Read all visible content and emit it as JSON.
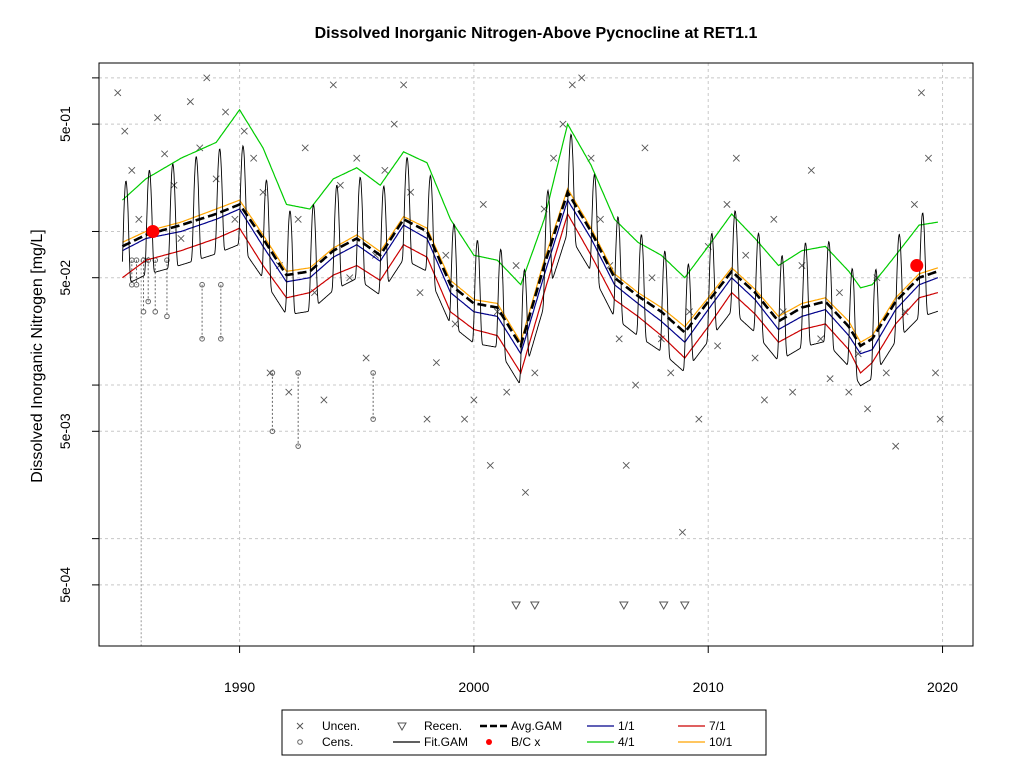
{
  "chart_data": {
    "type": "line",
    "title": "Dissolved Inorganic Nitrogen-Above Pycnocline at RET1.1",
    "xlabel": "",
    "ylabel": "Dissolved Inorganic Nitrogen [mg/L]",
    "y_scale": "log",
    "xlim": [
      1984.0,
      2021.3
    ],
    "ylim": [
      0.0002,
      1.25
    ],
    "x_ticks": [
      1990,
      2000,
      2010,
      2020
    ],
    "x_tick_labels": [
      "1990",
      "2000",
      "2010",
      "2020"
    ],
    "y_ticks": [
      0.0005,
      0.005,
      0.05,
      0.5
    ],
    "y_tick_labels": [
      "5e-04",
      "5e-03",
      "5e-02",
      "5e-01"
    ],
    "y_gridlines": [
      0.001,
      0.01,
      0.1,
      1.0
    ],
    "grid": true,
    "legend_position": "bottom-center",
    "legend": [
      {
        "label": "Uncen.",
        "kind": "cross"
      },
      {
        "label": "Cens.",
        "kind": "circle"
      },
      {
        "label": "Recen.",
        "kind": "triangle"
      },
      {
        "label": "Fit.GAM",
        "kind": "line",
        "color": "#000000"
      },
      {
        "label": "Avg.GAM",
        "kind": "dashed",
        "color": "#000000"
      },
      {
        "label": "B/C x",
        "kind": "dot",
        "color": "#ff0000"
      },
      {
        "label": "1/1",
        "kind": "line",
        "color": "#00008b"
      },
      {
        "label": "4/1",
        "kind": "line",
        "color": "#00cc00"
      },
      {
        "label": "7/1",
        "kind": "line",
        "color": "#cc0000"
      },
      {
        "label": "10/1",
        "kind": "line",
        "color": "#ffa500"
      }
    ],
    "avg_gam": {
      "x": [
        1985.0,
        1986.0,
        1987.5,
        1989.0,
        1990.0,
        1991.0,
        1992.0,
        1993.0,
        1994.0,
        1995.0,
        1996.0,
        1997.0,
        1998.0,
        1999.0,
        2000.0,
        2001.0,
        2002.0,
        2003.0,
        2004.0,
        2005.0,
        2006.0,
        2007.0,
        2008.0,
        2009.0,
        2010.0,
        2011.0,
        2012.0,
        2013.0,
        2014.0,
        2015.0,
        2016.0,
        2016.5,
        2017.0,
        2018.0,
        2019.0,
        2019.8
      ],
      "y": [
        0.08,
        0.095,
        0.11,
        0.13,
        0.15,
        0.09,
        0.052,
        0.055,
        0.075,
        0.09,
        0.07,
        0.12,
        0.1,
        0.045,
        0.034,
        0.032,
        0.018,
        0.06,
        0.18,
        0.1,
        0.05,
        0.038,
        0.03,
        0.022,
        0.035,
        0.055,
        0.04,
        0.026,
        0.032,
        0.035,
        0.024,
        0.018,
        0.02,
        0.035,
        0.05,
        0.055
      ]
    },
    "series": [
      {
        "name": "4/1",
        "color": "#00cc00",
        "x": [
          1985.0,
          1986.0,
          1987.5,
          1989.0,
          1990.0,
          1991.0,
          1992.0,
          1993.0,
          1994.0,
          1995.0,
          1996.0,
          1997.0,
          1998.0,
          1999.0,
          2000.0,
          2001.0,
          2002.0,
          2003.0,
          2004.0,
          2005.0,
          2006.0,
          2007.0,
          2008.0,
          2009.0,
          2010.0,
          2011.0,
          2012.0,
          2013.0,
          2014.0,
          2015.0,
          2016.0,
          2016.5,
          2017.0,
          2018.0,
          2019.0,
          2019.8
        ],
        "y": [
          0.16,
          0.22,
          0.3,
          0.38,
          0.62,
          0.35,
          0.15,
          0.14,
          0.22,
          0.26,
          0.2,
          0.33,
          0.28,
          0.12,
          0.07,
          0.065,
          0.045,
          0.12,
          0.5,
          0.27,
          0.12,
          0.085,
          0.07,
          0.05,
          0.08,
          0.13,
          0.09,
          0.06,
          0.075,
          0.08,
          0.055,
          0.043,
          0.045,
          0.07,
          0.11,
          0.115
        ]
      },
      {
        "name": "10/1",
        "color": "#ffa500",
        "x": [
          1985.0,
          1986.0,
          1987.5,
          1989.0,
          1990.0,
          1991.0,
          1992.0,
          1993.0,
          1994.0,
          1995.0,
          1996.0,
          1997.0,
          1998.0,
          1999.0,
          2000.0,
          2001.0,
          2002.0,
          2003.0,
          2004.0,
          2005.0,
          2006.0,
          2007.0,
          2008.0,
          2009.0,
          2010.0,
          2011.0,
          2012.0,
          2013.0,
          2014.0,
          2015.0,
          2016.0,
          2016.5,
          2017.0,
          2018.0,
          2019.0,
          2019.8
        ],
        "y": [
          0.085,
          0.1,
          0.115,
          0.14,
          0.16,
          0.095,
          0.055,
          0.058,
          0.078,
          0.095,
          0.074,
          0.125,
          0.105,
          0.048,
          0.036,
          0.034,
          0.019,
          0.065,
          0.19,
          0.105,
          0.053,
          0.04,
          0.032,
          0.024,
          0.037,
          0.058,
          0.042,
          0.028,
          0.034,
          0.037,
          0.026,
          0.019,
          0.021,
          0.037,
          0.053,
          0.058
        ]
      },
      {
        "name": "1/1",
        "color": "#00008b",
        "x": [
          1985.0,
          1986.0,
          1987.5,
          1989.0,
          1990.0,
          1991.0,
          1992.0,
          1993.0,
          1994.0,
          1995.0,
          1996.0,
          1997.0,
          1998.0,
          1999.0,
          2000.0,
          2001.0,
          2002.0,
          2003.0,
          2004.0,
          2005.0,
          2006.0,
          2007.0,
          2008.0,
          2009.0,
          2010.0,
          2011.0,
          2012.0,
          2013.0,
          2014.0,
          2015.0,
          2016.0,
          2016.5,
          2017.0,
          2018.0,
          2019.0,
          2019.8
        ],
        "y": [
          0.075,
          0.09,
          0.1,
          0.12,
          0.14,
          0.08,
          0.047,
          0.05,
          0.068,
          0.082,
          0.064,
          0.11,
          0.09,
          0.04,
          0.03,
          0.028,
          0.016,
          0.052,
          0.16,
          0.09,
          0.045,
          0.034,
          0.026,
          0.019,
          0.031,
          0.05,
          0.036,
          0.023,
          0.028,
          0.031,
          0.021,
          0.016,
          0.017,
          0.031,
          0.045,
          0.05
        ]
      },
      {
        "name": "7/1",
        "color": "#cc0000",
        "x": [
          1985.0,
          1986.0,
          1987.5,
          1989.0,
          1990.0,
          1991.0,
          1992.0,
          1993.0,
          1994.0,
          1995.0,
          1996.0,
          1997.0,
          1998.0,
          1999.0,
          2000.0,
          2001.0,
          2002.0,
          2003.0,
          2004.0,
          2005.0,
          2006.0,
          2007.0,
          2008.0,
          2009.0,
          2010.0,
          2011.0,
          2012.0,
          2013.0,
          2014.0,
          2015.0,
          2016.0,
          2016.5,
          2017.0,
          2018.0,
          2019.0,
          2019.8
        ],
        "y": [
          0.05,
          0.065,
          0.075,
          0.09,
          0.105,
          0.06,
          0.037,
          0.04,
          0.052,
          0.06,
          0.048,
          0.082,
          0.068,
          0.03,
          0.023,
          0.021,
          0.012,
          0.04,
          0.13,
          0.07,
          0.036,
          0.028,
          0.021,
          0.015,
          0.024,
          0.04,
          0.029,
          0.019,
          0.023,
          0.025,
          0.017,
          0.012,
          0.014,
          0.025,
          0.037,
          0.04
        ]
      }
    ],
    "fit_gam_seasonal_ratio": [
      2.6,
      0.55
    ],
    "bc_points": [
      {
        "x": 1986.3,
        "y": 0.1
      },
      {
        "x": 2018.9,
        "y": 0.06
      }
    ],
    "uncensored_points": [
      [
        1984.8,
        0.8
      ],
      [
        1985.1,
        0.45
      ],
      [
        1985.4,
        0.25
      ],
      [
        1985.7,
        0.12
      ],
      [
        1986.0,
        0.065
      ],
      [
        1986.5,
        0.55
      ],
      [
        1986.8,
        0.32
      ],
      [
        1987.2,
        0.2
      ],
      [
        1987.5,
        0.09
      ],
      [
        1987.9,
        0.7
      ],
      [
        1988.3,
        0.35
      ],
      [
        1988.6,
        1.0
      ],
      [
        1989.0,
        0.22
      ],
      [
        1989.4,
        0.6
      ],
      [
        1989.8,
        0.12
      ],
      [
        1990.2,
        0.45
      ],
      [
        1990.6,
        0.3
      ],
      [
        1991.0,
        0.18
      ],
      [
        1991.3,
        0.012
      ],
      [
        1991.7,
        0.06
      ],
      [
        1992.1,
        0.009
      ],
      [
        1992.5,
        0.12
      ],
      [
        1992.8,
        0.35
      ],
      [
        1993.2,
        0.04
      ],
      [
        1993.6,
        0.008
      ],
      [
        1994.0,
        0.9
      ],
      [
        1994.3,
        0.2
      ],
      [
        1994.7,
        0.05
      ],
      [
        1995.0,
        0.3
      ],
      [
        1995.4,
        0.015
      ],
      [
        1995.8,
        0.07
      ],
      [
        1996.2,
        0.25
      ],
      [
        1996.6,
        0.5
      ],
      [
        1997.0,
        0.9
      ],
      [
        1997.3,
        0.18
      ],
      [
        1997.7,
        0.04
      ],
      [
        1998.0,
        0.006
      ],
      [
        1998.4,
        0.014
      ],
      [
        1998.8,
        0.07
      ],
      [
        1999.2,
        0.025
      ],
      [
        1999.6,
        0.006
      ],
      [
        2000.0,
        0.008
      ],
      [
        2000.4,
        0.15
      ],
      [
        2000.7,
        0.003
      ],
      [
        2001.0,
        0.03
      ],
      [
        2001.4,
        0.009
      ],
      [
        2001.8,
        0.06
      ],
      [
        2002.2,
        0.002
      ],
      [
        2002.6,
        0.012
      ],
      [
        2003.0,
        0.14
      ],
      [
        2003.4,
        0.3
      ],
      [
        2003.8,
        0.5
      ],
      [
        2004.2,
        0.9
      ],
      [
        2004.6,
        1.0
      ],
      [
        2005.0,
        0.3
      ],
      [
        2005.4,
        0.12
      ],
      [
        2005.8,
        0.06
      ],
      [
        2006.2,
        0.02
      ],
      [
        2006.5,
        0.003
      ],
      [
        2006.9,
        0.01
      ],
      [
        2007.3,
        0.35
      ],
      [
        2007.6,
        0.05
      ],
      [
        2008.0,
        0.02
      ],
      [
        2008.4,
        0.012
      ],
      [
        2008.9,
        0.0011
      ],
      [
        2009.2,
        0.03
      ],
      [
        2009.6,
        0.006
      ],
      [
        2010.0,
        0.08
      ],
      [
        2010.4,
        0.018
      ],
      [
        2010.8,
        0.15
      ],
      [
        2011.2,
        0.3
      ],
      [
        2011.6,
        0.07
      ],
      [
        2012.0,
        0.015
      ],
      [
        2012.4,
        0.008
      ],
      [
        2012.8,
        0.12
      ],
      [
        2013.2,
        0.03
      ],
      [
        2013.6,
        0.009
      ],
      [
        2014.0,
        0.06
      ],
      [
        2014.4,
        0.25
      ],
      [
        2014.8,
        0.02
      ],
      [
        2015.2,
        0.011
      ],
      [
        2015.6,
        0.04
      ],
      [
        2016.0,
        0.009
      ],
      [
        2016.4,
        0.016
      ],
      [
        2016.8,
        0.007
      ],
      [
        2017.2,
        0.05
      ],
      [
        2017.6,
        0.012
      ],
      [
        2018.0,
        0.004
      ],
      [
        2018.4,
        0.03
      ],
      [
        2018.8,
        0.15
      ],
      [
        2019.1,
        0.8
      ],
      [
        2019.4,
        0.3
      ],
      [
        2019.7,
        0.012
      ],
      [
        2019.9,
        0.006
      ]
    ],
    "censored_points": [
      {
        "x": 1985.4,
        "hi": 0.065,
        "lo": 0.045
      },
      {
        "x": 1985.6,
        "hi": 0.065,
        "lo": 0.045
      },
      {
        "x": 1985.9,
        "hi": 0.065,
        "lo": 0.03
      },
      {
        "x": 1986.1,
        "hi": 0.065,
        "lo": 0.035
      },
      {
        "x": 1986.4,
        "hi": 0.065,
        "lo": 0.03
      },
      {
        "x": 1986.9,
        "hi": 0.065,
        "lo": 0.028
      },
      {
        "x": 1988.4,
        "hi": 0.045,
        "lo": 0.02
      },
      {
        "x": 1989.2,
        "hi": 0.045,
        "lo": 0.02
      },
      {
        "x": 1991.4,
        "hi": 0.012,
        "lo": 0.005
      },
      {
        "x": 1992.5,
        "hi": 0.012,
        "lo": 0.004
      },
      {
        "x": 1995.7,
        "hi": 0.012,
        "lo": 0.006
      }
    ],
    "recensored_points": [
      {
        "x": 2001.8,
        "y": 0.00037
      },
      {
        "x": 2002.6,
        "y": 0.00037
      },
      {
        "x": 2006.4,
        "y": 0.00037
      },
      {
        "x": 2008.1,
        "y": 0.00037
      },
      {
        "x": 2009.0,
        "y": 0.00037
      }
    ]
  }
}
